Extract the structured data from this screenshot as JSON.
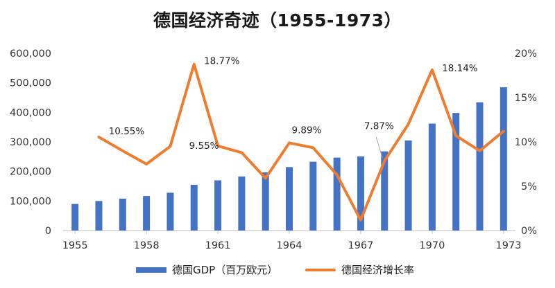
{
  "chart_data": {
    "type": "bar+line",
    "title": "德国经济奇迹（1955-1973）",
    "x": [
      1955,
      1956,
      1957,
      1958,
      1959,
      1960,
      1961,
      1962,
      1963,
      1964,
      1965,
      1966,
      1967,
      1968,
      1969,
      1970,
      1971,
      1972,
      1973
    ],
    "x_tick_labels": [
      "1955",
      "1958",
      "1961",
      "1964",
      "1967",
      "1970",
      "1973"
    ],
    "left_axis": {
      "range": [
        0,
        600000
      ],
      "ticks": [
        "0",
        "100,000",
        "200,000",
        "300,000",
        "400,000",
        "500,000",
        "600,000"
      ]
    },
    "right_axis": {
      "range": [
        0,
        0.2
      ],
      "ticks": [
        "0%",
        "5%",
        "10%",
        "15%",
        "20%"
      ]
    },
    "series": [
      {
        "name": "德国GDP（百万欧元）",
        "type": "bar",
        "axis": "left",
        "color": "#4472c4",
        "values": [
          90000,
          100000,
          108000,
          117000,
          128000,
          155000,
          170000,
          183000,
          197000,
          215000,
          233000,
          247000,
          251000,
          268000,
          305000,
          362000,
          398000,
          434000,
          485000
        ]
      },
      {
        "name": "德国经济增长率",
        "type": "line",
        "axis": "right",
        "color": "#ed7d31",
        "values": [
          null,
          0.1055,
          0.09,
          0.075,
          0.095,
          0.1877,
          0.0955,
          0.088,
          0.059,
          0.0989,
          0.0935,
          0.063,
          0.0118,
          0.0787,
          0.12,
          0.1814,
          0.107,
          0.09,
          0.112
        ]
      }
    ],
    "data_labels": [
      {
        "index": 1,
        "text": "10.55%"
      },
      {
        "index": 5,
        "text": "18.77%"
      },
      {
        "index": 6,
        "text": "9.55%"
      },
      {
        "index": 9,
        "text": "9.89%"
      },
      {
        "index": 13,
        "text": "7.87%"
      },
      {
        "index": 15,
        "text": "18.14%"
      }
    ],
    "legend_position": "bottom",
    "grid": false
  }
}
